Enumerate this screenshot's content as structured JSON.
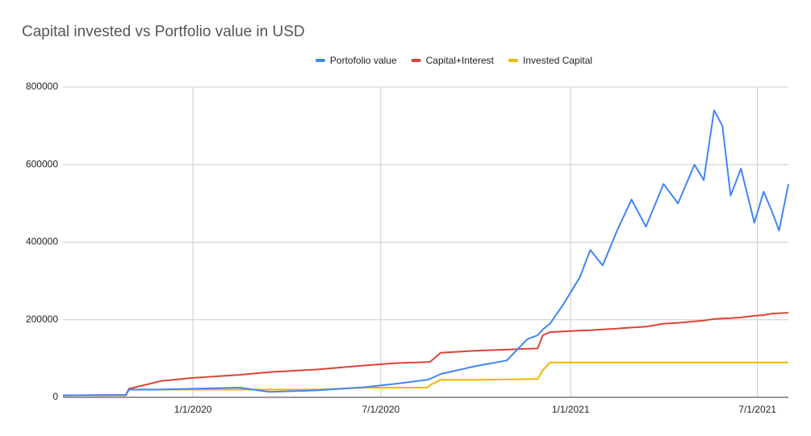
{
  "chart_data": {
    "type": "line",
    "title": "Capital invested vs Portfolio value in USD",
    "x": [
      "8/28/2019",
      "10/28/2019",
      "10/31/2019",
      "12/1/2019",
      "1/1/2020",
      "2/15/2020",
      "3/15/2020",
      "5/1/2020",
      "6/15/2020",
      "7/15/2020",
      "8/15/2020",
      "8/18/2020",
      "8/28/2020",
      "9/30/2020",
      "10/31/2020",
      "11/20/2020",
      "11/30/2020",
      "12/5/2020",
      "12/12/2020",
      "12/25/2020",
      "1/10/2021",
      "1/20/2021",
      "2/1/2021",
      "2/15/2021",
      "3/1/2021",
      "3/15/2021",
      "4/1/2021",
      "4/15/2021",
      "5/1/2021",
      "5/10/2021",
      "5/20/2021",
      "5/28/2021",
      "6/5/2021",
      "6/15/2021",
      "6/28/2021",
      "7/7/2021",
      "7/15/2021",
      "7/22/2021",
      "7/31/2021"
    ],
    "series": [
      {
        "name": "Portofolio value",
        "color": "#4285f4",
        "values": [
          5000,
          6000,
          20000,
          20000,
          22000,
          25000,
          14000,
          18000,
          26000,
          35000,
          45000,
          48000,
          60000,
          80000,
          95000,
          150000,
          160000,
          175000,
          190000,
          240000,
          310000,
          380000,
          340000,
          430000,
          510000,
          440000,
          550000,
          500000,
          600000,
          560000,
          740000,
          700000,
          520000,
          590000,
          450000,
          530000,
          480000,
          430000,
          550000
        ]
      },
      {
        "name": "Capital+Interest",
        "color": "#db4437",
        "values": [
          5000,
          6000,
          22000,
          42000,
          50000,
          58000,
          65000,
          72000,
          82000,
          88000,
          91000,
          92000,
          115000,
          120000,
          123000,
          125000,
          126000,
          160000,
          168000,
          170000,
          172000,
          173000,
          175000,
          177000,
          180000,
          182000,
          190000,
          192000,
          196000,
          198000,
          202000,
          203000,
          204000,
          206000,
          210000,
          212000,
          216000,
          217000,
          218000
        ]
      },
      {
        "name": "Invested Capital",
        "color": "#f4b400",
        "values": [
          5000,
          5000,
          20000,
          20000,
          20000,
          20000,
          20000,
          20000,
          25000,
          25000,
          25000,
          32000,
          45000,
          45000,
          46000,
          47000,
          47000,
          70000,
          90000,
          90000,
          90000,
          90000,
          90000,
          90000,
          90000,
          90000,
          90000,
          90000,
          90000,
          90000,
          90000,
          90000,
          90000,
          90000,
          90000,
          90000,
          90000,
          90000,
          90000
        ]
      }
    ],
    "xlim": [
      "8/28/2019",
      "7/31/2021"
    ],
    "xticks": [
      "1/1/2020",
      "7/1/2020",
      "1/1/2021",
      "7/1/2021"
    ],
    "ylim": [
      0,
      800000
    ],
    "yticks": [
      0,
      200000,
      400000,
      600000,
      800000
    ],
    "grid": true,
    "legend": "top"
  }
}
